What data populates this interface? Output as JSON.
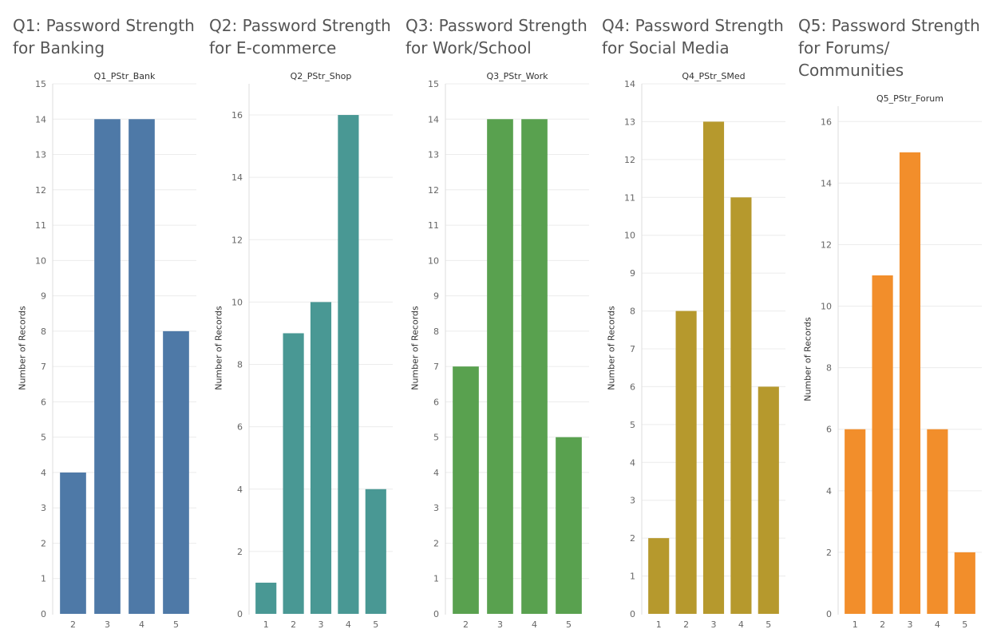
{
  "chart_data": [
    {
      "type": "bar",
      "title": "Q1: Password Strength for Banking",
      "subtitle": "Q1_PStr_Bank",
      "ylabel": "Number of Records",
      "categories": [
        "2",
        "3",
        "4",
        "5"
      ],
      "values": [
        4,
        14,
        14,
        8
      ],
      "ylim": [
        0,
        15
      ],
      "yticks": [
        0,
        1,
        2,
        3,
        4,
        5,
        6,
        7,
        8,
        9,
        10,
        11,
        12,
        13,
        14,
        15
      ],
      "color": "#4e79a7",
      "grid": true
    },
    {
      "type": "bar",
      "title": "Q2: Password Strength for E-commerce",
      "subtitle": "Q2_PStr_Shop",
      "ylabel": "Number of Records",
      "categories": [
        "1",
        "2",
        "3",
        "4",
        "5"
      ],
      "values": [
        1,
        9,
        10,
        16,
        4
      ],
      "ylim": [
        0,
        17
      ],
      "yticks": [
        0,
        2,
        4,
        6,
        8,
        10,
        12,
        14,
        16
      ],
      "color": "#499894",
      "grid": true
    },
    {
      "type": "bar",
      "title": "Q3: Password Strength for Work/School",
      "subtitle": "Q3_PStr_Work",
      "ylabel": "Number of Records",
      "categories": [
        "2",
        "3",
        "4",
        "5"
      ],
      "values": [
        7,
        14,
        14,
        5
      ],
      "ylim": [
        0,
        15
      ],
      "yticks": [
        0,
        1,
        2,
        3,
        4,
        5,
        6,
        7,
        8,
        9,
        10,
        11,
        12,
        13,
        14,
        15
      ],
      "color": "#59a14f",
      "grid": true
    },
    {
      "type": "bar",
      "title": "Q4: Password Strength for Social Media",
      "subtitle": "Q4_PStr_SMed",
      "ylabel": "Number of Records",
      "categories": [
        "1",
        "2",
        "3",
        "4",
        "5"
      ],
      "values": [
        2,
        8,
        13,
        11,
        6
      ],
      "ylim": [
        0,
        14
      ],
      "yticks": [
        0,
        1,
        2,
        3,
        4,
        5,
        6,
        7,
        8,
        9,
        10,
        11,
        12,
        13,
        14
      ],
      "color": "#b6992d",
      "grid": true
    },
    {
      "type": "bar",
      "title": "Q5: Password Strength for Forums/ Communities",
      "subtitle": "Q5_PStr_Forum",
      "ylabel": "Number of Records",
      "categories": [
        "1",
        "2",
        "3",
        "4",
        "5"
      ],
      "values": [
        6,
        11,
        15,
        6,
        2
      ],
      "ylim": [
        0,
        16.5
      ],
      "yticks": [
        0,
        2,
        4,
        6,
        8,
        10,
        12,
        14,
        16
      ],
      "color": "#f28e2b",
      "grid": true
    }
  ]
}
